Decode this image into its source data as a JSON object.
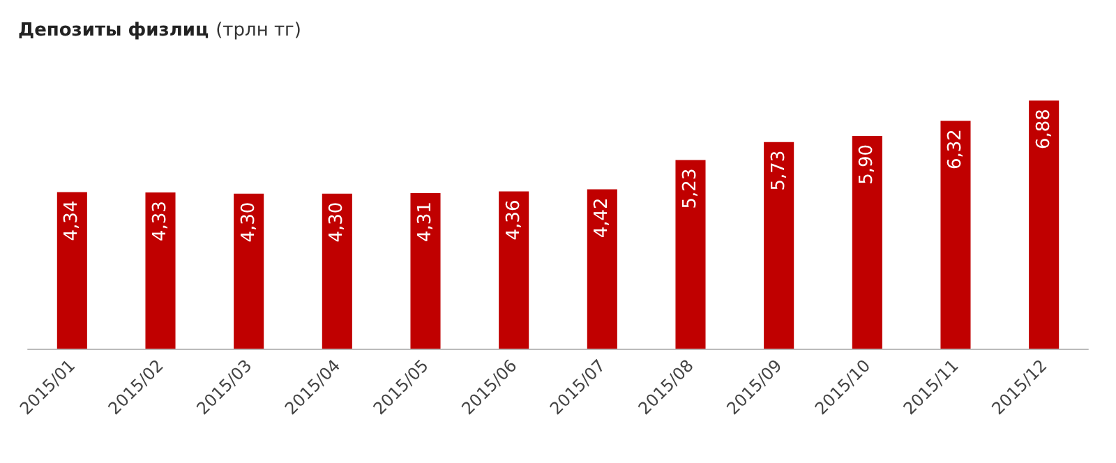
{
  "chart_data": {
    "type": "bar",
    "title": "Депозиты физлиц",
    "subtitle": "(трлн тг)",
    "categories": [
      "2015/01",
      "2015/02",
      "2015/03",
      "2015/04",
      "2015/05",
      "2015/06",
      "2015/07",
      "2015/08",
      "2015/09",
      "2015/10",
      "2015/11",
      "2015/12"
    ],
    "values": [
      4.34,
      4.33,
      4.3,
      4.3,
      4.31,
      4.36,
      4.42,
      5.23,
      5.73,
      5.9,
      6.32,
      6.88
    ],
    "value_labels": [
      "4,34",
      "4,33",
      "4,30",
      "4,30",
      "4,31",
      "4,36",
      "4,42",
      "5,23",
      "5,73",
      "5,90",
      "6,32",
      "6,88"
    ],
    "color": "#c00000"
  }
}
